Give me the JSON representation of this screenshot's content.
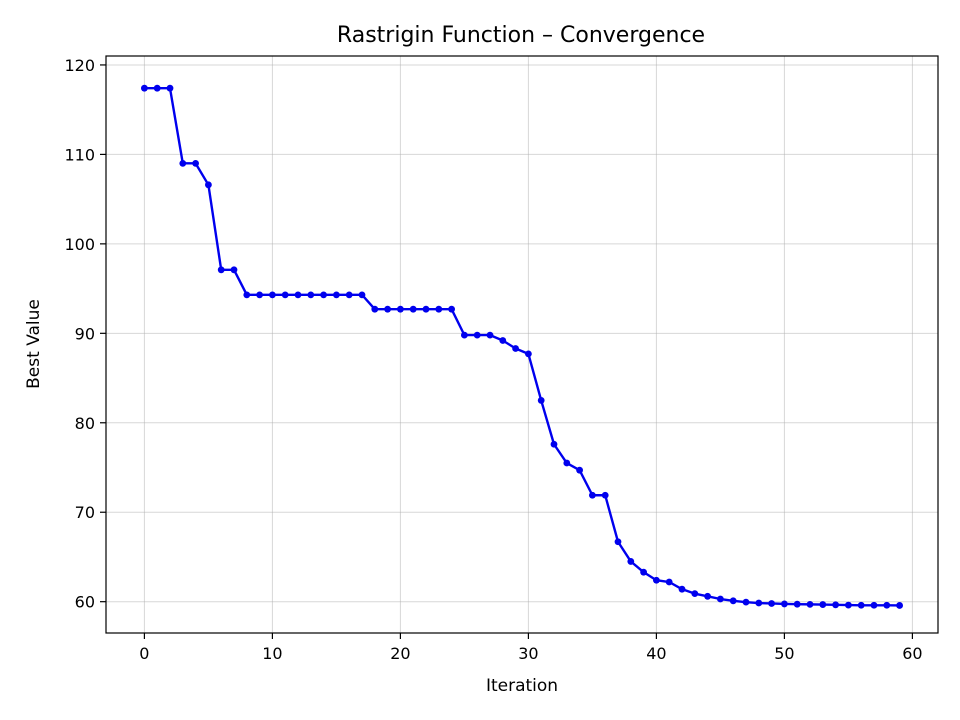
{
  "chart_data": {
    "type": "line",
    "title": "Rastrigin Function – Convergence",
    "xlabel": "Iteration",
    "ylabel": "Best Value",
    "xlim": [
      -3,
      62
    ],
    "ylim": [
      56.5,
      121
    ],
    "xticks": [
      0,
      10,
      20,
      30,
      40,
      50,
      60
    ],
    "yticks": [
      60,
      70,
      80,
      90,
      100,
      110,
      120
    ],
    "grid": true,
    "line_color": "#0000ee",
    "series": [
      {
        "x": [
          0,
          1,
          2,
          3,
          4,
          5,
          6,
          7,
          8,
          9,
          10,
          11,
          12,
          13,
          14,
          15,
          16,
          17,
          18,
          19,
          20,
          21,
          22,
          23,
          24,
          25,
          26,
          27,
          28,
          29,
          30,
          31,
          32,
          33,
          34,
          35,
          36,
          37,
          38,
          39,
          40,
          41,
          42,
          43,
          44,
          45,
          46,
          47,
          48,
          49,
          50,
          51,
          52,
          53,
          54,
          55,
          56,
          57,
          58,
          59
        ],
        "values": [
          117.4,
          117.4,
          117.4,
          109.0,
          109.0,
          106.6,
          97.1,
          97.1,
          94.3,
          94.3,
          94.3,
          94.3,
          94.3,
          94.3,
          94.3,
          94.3,
          94.3,
          94.3,
          92.7,
          92.7,
          92.7,
          92.7,
          92.7,
          92.7,
          92.7,
          89.8,
          89.8,
          89.8,
          89.2,
          88.3,
          87.7,
          82.5,
          77.6,
          75.5,
          74.7,
          71.9,
          71.9,
          66.7,
          64.5,
          63.3,
          62.4,
          62.2,
          61.4,
          60.9,
          60.6,
          60.3,
          60.1,
          59.95,
          59.85,
          59.8,
          59.75,
          59.72,
          59.7,
          59.68,
          59.65,
          59.62,
          59.6,
          59.6,
          59.6,
          59.58
        ]
      }
    ]
  }
}
